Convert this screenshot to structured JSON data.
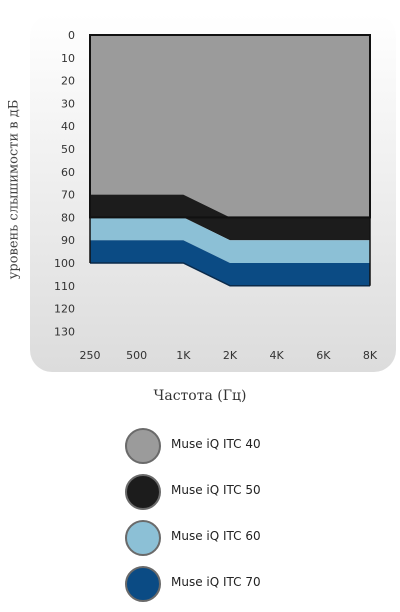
{
  "chart_data": {
    "type": "area",
    "xlabel": "Частота (Гц)",
    "ylabel": "уровень слышимости в дБ",
    "categories": [
      "250",
      "500",
      "1K",
      "2K",
      "4K",
      "6K",
      "8K"
    ],
    "y_ticks": [
      "0",
      "10",
      "20",
      "30",
      "40",
      "50",
      "60",
      "70",
      "80",
      "90",
      "100",
      "110",
      "120",
      "130"
    ],
    "ylim": [
      0,
      130
    ],
    "y_inverted": true,
    "x_breakpoints": [
      0,
      2,
      3,
      6
    ],
    "series": [
      {
        "name": "Muse iQ ITC 40",
        "color": "#9b9b9b",
        "lower": [
          70,
          70,
          80,
          80
        ]
      },
      {
        "name": "Muse iQ ITC 50",
        "color": "#1c1c1c",
        "lower": [
          80,
          80,
          90,
          90
        ]
      },
      {
        "name": "Muse iQ ITC 60",
        "color": "#8cc0d6",
        "lower": [
          90,
          90,
          100,
          100
        ]
      },
      {
        "name": "Muse iQ ITC 70",
        "color": "#0b4b84",
        "lower": [
          100,
          100,
          110,
          110
        ]
      }
    ],
    "legend_position": "bottom"
  }
}
